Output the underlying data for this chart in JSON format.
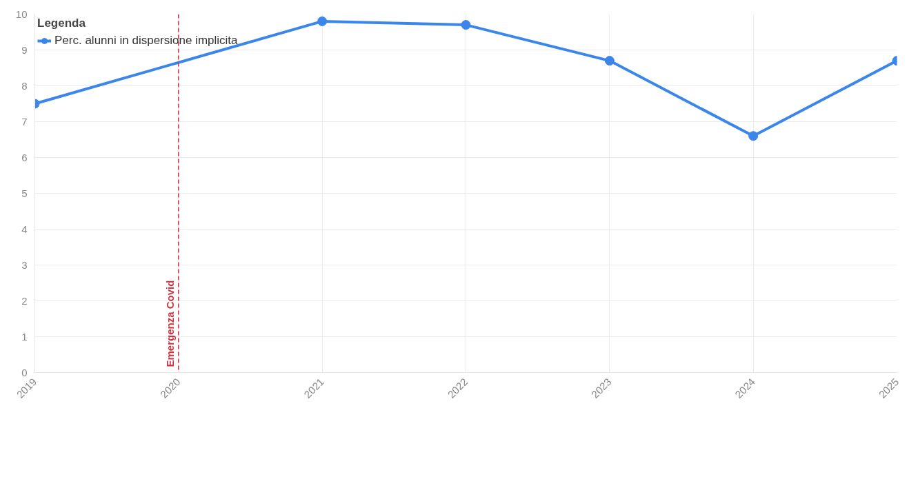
{
  "chart_data": {
    "type": "line",
    "legend_title": "Legenda",
    "x": [
      2019,
      2021,
      2022,
      2023,
      2024,
      2025
    ],
    "series": [
      {
        "name": "Perc. alunni in dispersione implicita",
        "color": "#3a86ea",
        "values": [
          7.5,
          9.8,
          9.7,
          8.7,
          6.6,
          8.7
        ]
      }
    ],
    "xlim": [
      2019,
      2025
    ],
    "xticks": [
      2019,
      2020,
      2021,
      2022,
      2023,
      2024,
      2025
    ],
    "ylim": [
      0,
      10
    ],
    "yticks": [
      0,
      1,
      2,
      3,
      4,
      5,
      6,
      7,
      8,
      9,
      10
    ],
    "ref_lines": [
      {
        "axis": "x",
        "value": 2020,
        "label": "Emergenza Covid",
        "color": "#d0313b",
        "line_style": "dashed"
      }
    ],
    "grid": true,
    "legend": "top left",
    "marker": "circle",
    "line_style": "solid"
  }
}
